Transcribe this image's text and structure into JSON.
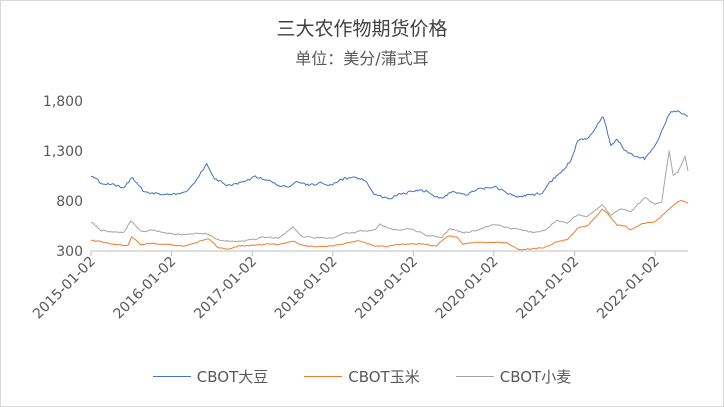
{
  "chart_data": {
    "type": "line",
    "title": "三大农作物期货价格",
    "subtitle": "单位：美分/蒲式耳",
    "xlabel": "",
    "ylabel": "",
    "ylim": [
      300,
      1800
    ],
    "yticks": [
      "300",
      "800",
      "1,300",
      "1,800"
    ],
    "xticks": [
      "2015-01-02",
      "2016-01-02",
      "2017-01-02",
      "2018-01-02",
      "2019-01-02",
      "2020-01-02",
      "2021-01-02",
      "2022-01-02"
    ],
    "xrange": [
      "2015-01-02",
      "2022-05-31"
    ],
    "grid": false,
    "legend_position": "bottom",
    "series": [
      {
        "name": "CBOT大豆",
        "color": "#4472c4",
        "points": [
          [
            "2015-01-02",
            1050
          ],
          [
            "2015-02-15",
            980
          ],
          [
            "2015-04-01",
            970
          ],
          [
            "2015-06-01",
            950
          ],
          [
            "2015-07-10",
            1030
          ],
          [
            "2015-09-01",
            880
          ],
          [
            "2015-11-01",
            870
          ],
          [
            "2016-01-02",
            870
          ],
          [
            "2016-03-01",
            880
          ],
          [
            "2016-04-20",
            1000
          ],
          [
            "2016-06-10",
            1170
          ],
          [
            "2016-07-15",
            1030
          ],
          [
            "2016-09-01",
            960
          ],
          [
            "2016-10-15",
            970
          ],
          [
            "2016-12-01",
            1000
          ],
          [
            "2017-01-15",
            1040
          ],
          [
            "2017-03-01",
            1020
          ],
          [
            "2017-05-01",
            960
          ],
          [
            "2017-06-20",
            930
          ],
          [
            "2017-07-15",
            1000
          ],
          [
            "2017-09-15",
            960
          ],
          [
            "2017-11-01",
            980
          ],
          [
            "2018-01-02",
            960
          ],
          [
            "2018-03-01",
            1040
          ],
          [
            "2018-05-01",
            1030
          ],
          [
            "2018-06-01",
            990
          ],
          [
            "2018-07-15",
            860
          ],
          [
            "2018-09-10",
            830
          ],
          [
            "2018-11-01",
            870
          ],
          [
            "2019-01-02",
            900
          ],
          [
            "2019-03-01",
            900
          ],
          [
            "2019-05-10",
            820
          ],
          [
            "2019-06-15",
            900
          ],
          [
            "2019-09-01",
            870
          ],
          [
            "2019-11-01",
            920
          ],
          [
            "2020-01-02",
            940
          ],
          [
            "2020-03-01",
            880
          ],
          [
            "2020-04-15",
            840
          ],
          [
            "2020-06-01",
            860
          ],
          [
            "2020-08-10",
            880
          ],
          [
            "2020-09-15",
            1000
          ],
          [
            "2020-11-01",
            1080
          ],
          [
            "2020-12-15",
            1200
          ],
          [
            "2021-01-15",
            1400
          ],
          [
            "2021-03-01",
            1420
          ],
          [
            "2021-05-12",
            1650
          ],
          [
            "2021-06-15",
            1350
          ],
          [
            "2021-07-10",
            1420
          ],
          [
            "2021-08-15",
            1320
          ],
          [
            "2021-10-01",
            1250
          ],
          [
            "2021-11-15",
            1220
          ],
          [
            "2022-01-02",
            1360
          ],
          [
            "2022-02-25",
            1620
          ],
          [
            "2022-03-15",
            1680
          ],
          [
            "2022-04-15",
            1700
          ],
          [
            "2022-05-31",
            1650
          ]
        ]
      },
      {
        "name": "CBOT玉米",
        "color": "#ed7d31",
        "points": [
          [
            "2015-01-02",
            405
          ],
          [
            "2015-03-01",
            385
          ],
          [
            "2015-05-01",
            360
          ],
          [
            "2015-06-20",
            360
          ],
          [
            "2015-07-05",
            440
          ],
          [
            "2015-08-15",
            370
          ],
          [
            "2015-10-01",
            380
          ],
          [
            "2016-01-02",
            360
          ],
          [
            "2016-03-01",
            350
          ],
          [
            "2016-05-01",
            390
          ],
          [
            "2016-06-15",
            430
          ],
          [
            "2016-08-01",
            330
          ],
          [
            "2016-09-15",
            320
          ],
          [
            "2016-11-01",
            345
          ],
          [
            "2017-01-02",
            355
          ],
          [
            "2017-03-01",
            370
          ],
          [
            "2017-05-01",
            365
          ],
          [
            "2017-07-10",
            395
          ],
          [
            "2017-08-25",
            350
          ],
          [
            "2017-10-15",
            345
          ],
          [
            "2018-01-02",
            350
          ],
          [
            "2018-03-01",
            380
          ],
          [
            "2018-05-01",
            400
          ],
          [
            "2018-07-10",
            350
          ],
          [
            "2018-09-10",
            345
          ],
          [
            "2018-11-01",
            365
          ],
          [
            "2019-01-02",
            375
          ],
          [
            "2019-04-15",
            355
          ],
          [
            "2019-06-10",
            450
          ],
          [
            "2019-07-15",
            440
          ],
          [
            "2019-08-15",
            370
          ],
          [
            "2019-10-15",
            390
          ],
          [
            "2020-01-02",
            385
          ],
          [
            "2020-03-01",
            380
          ],
          [
            "2020-04-20",
            315
          ],
          [
            "2020-06-25",
            320
          ],
          [
            "2020-08-15",
            330
          ],
          [
            "2020-10-01",
            380
          ],
          [
            "2020-12-01",
            420
          ],
          [
            "2021-01-15",
            530
          ],
          [
            "2021-03-01",
            550
          ],
          [
            "2021-05-07",
            720
          ],
          [
            "2021-06-10",
            650
          ],
          [
            "2021-07-15",
            560
          ],
          [
            "2021-08-15",
            550
          ],
          [
            "2021-09-15",
            510
          ],
          [
            "2021-11-01",
            570
          ],
          [
            "2022-01-02",
            590
          ],
          [
            "2022-02-25",
            700
          ],
          [
            "2022-03-15",
            740
          ],
          [
            "2022-04-29",
            810
          ],
          [
            "2022-05-31",
            780
          ]
        ]
      },
      {
        "name": "CBOT小麦",
        "color": "#a5a5a5",
        "points": [
          [
            "2015-01-02",
            590
          ],
          [
            "2015-02-15",
            510
          ],
          [
            "2015-04-15",
            480
          ],
          [
            "2015-06-01",
            490
          ],
          [
            "2015-06-30",
            600
          ],
          [
            "2015-08-15",
            500
          ],
          [
            "2015-10-01",
            500
          ],
          [
            "2016-01-02",
            470
          ],
          [
            "2016-03-01",
            460
          ],
          [
            "2016-05-01",
            480
          ],
          [
            "2016-06-15",
            470
          ],
          [
            "2016-08-01",
            410
          ],
          [
            "2016-09-15",
            400
          ],
          [
            "2016-11-01",
            400
          ],
          [
            "2017-01-02",
            420
          ],
          [
            "2017-03-01",
            440
          ],
          [
            "2017-05-01",
            430
          ],
          [
            "2017-07-05",
            540
          ],
          [
            "2017-08-15",
            440
          ],
          [
            "2017-10-01",
            430
          ],
          [
            "2018-01-02",
            430
          ],
          [
            "2018-03-01",
            480
          ],
          [
            "2018-05-01",
            500
          ],
          [
            "2018-07-15",
            510
          ],
          [
            "2018-08-02",
            570
          ],
          [
            "2018-10-01",
            510
          ],
          [
            "2018-12-01",
            520
          ],
          [
            "2019-01-02",
            515
          ],
          [
            "2019-03-01",
            460
          ],
          [
            "2019-05-10",
            430
          ],
          [
            "2019-06-15",
            520
          ],
          [
            "2019-08-15",
            480
          ],
          [
            "2019-10-15",
            510
          ],
          [
            "2020-01-02",
            560
          ],
          [
            "2020-03-15",
            530
          ],
          [
            "2020-05-01",
            510
          ],
          [
            "2020-07-01",
            490
          ],
          [
            "2020-08-15",
            500
          ],
          [
            "2020-10-15",
            610
          ],
          [
            "2020-12-01",
            580
          ],
          [
            "2021-01-15",
            660
          ],
          [
            "2021-03-01",
            650
          ],
          [
            "2021-05-07",
            760
          ],
          [
            "2021-06-15",
            660
          ],
          [
            "2021-08-01",
            720
          ],
          [
            "2021-09-15",
            700
          ],
          [
            "2021-11-15",
            830
          ],
          [
            "2022-01-02",
            770
          ],
          [
            "2022-02-01",
            790
          ],
          [
            "2022-03-07",
            1300
          ],
          [
            "2022-03-25",
            1050
          ],
          [
            "2022-04-15",
            1080
          ],
          [
            "2022-05-17",
            1250
          ],
          [
            "2022-05-31",
            1100
          ]
        ]
      }
    ]
  }
}
